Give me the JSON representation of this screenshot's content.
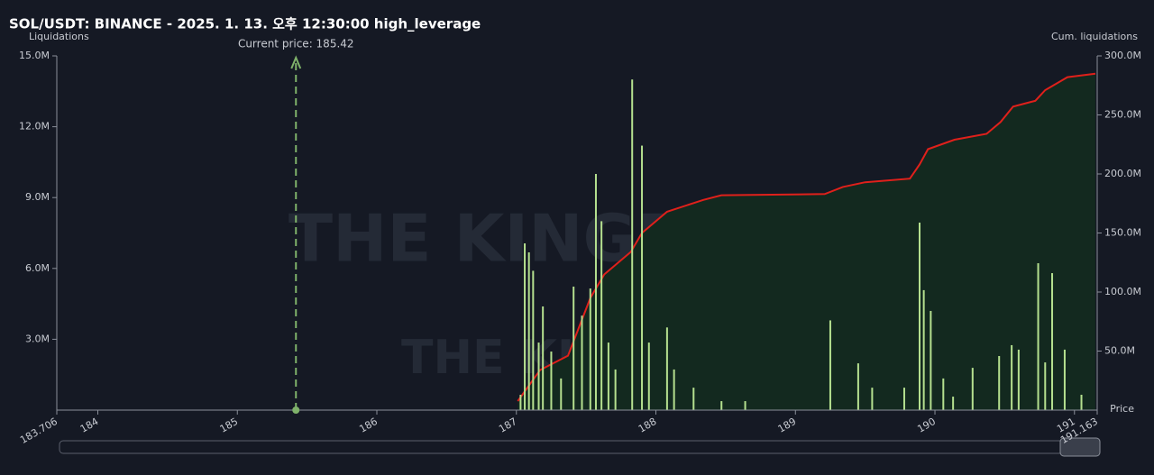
{
  "chart_data": {
    "type": "bar",
    "title": "SOL/USDT: BINANCE - 2025. 1. 13. 오후 12:30:00 high_leverage",
    "y_label": "Liquidations",
    "y2_label": "Cum. liquidations",
    "x_label": "Price",
    "watermark": "THE KINGFISHER.io",
    "current_price": 185.42,
    "current_price_label": "Current price: 185.42",
    "current_price_color": "#7fb26a",
    "xlim": [
      183.706,
      191.163
    ],
    "xticks": [
      183.706,
      184,
      185,
      186,
      187,
      188,
      189,
      190,
      191,
      191.163
    ],
    "ylim": [
      0,
      15000000
    ],
    "yticks": [
      {
        "value": 3000000,
        "label": "3.0M"
      },
      {
        "value": 6000000,
        "label": "6.0M"
      },
      {
        "value": 9000000,
        "label": "9.0M"
      },
      {
        "value": 12000000,
        "label": "12.0M"
      },
      {
        "value": 15000000,
        "label": "15.0M"
      }
    ],
    "y2lim": [
      0,
      300000000
    ],
    "y2ticks": [
      {
        "value": 50000000,
        "label": "50.0M"
      },
      {
        "value": 100000000,
        "label": "100.0M"
      },
      {
        "value": 150000000,
        "label": "150.0M"
      },
      {
        "value": 200000000,
        "label": "200.0M"
      },
      {
        "value": 250000000,
        "label": "250.0M"
      },
      {
        "value": 300000000,
        "label": "300.0M"
      }
    ],
    "series": [
      {
        "color": "#b5e08f",
        "x": [
          187.03,
          187.06,
          187.09,
          187.12,
          187.16,
          187.19,
          187.25,
          187.32,
          187.41,
          187.47,
          187.53,
          187.57,
          187.61,
          187.66,
          187.71,
          187.83,
          187.9,
          187.95,
          188.08,
          188.13,
          188.27,
          188.47,
          188.64,
          189.25,
          189.45,
          189.55,
          189.78,
          189.89,
          189.92,
          189.97,
          190.06,
          190.13,
          190.27,
          190.46,
          190.55,
          190.6,
          190.74,
          190.79,
          190.84,
          190.93,
          191.05
        ],
        "values": [
          650000,
          7060000,
          6680000,
          5900000,
          2860000,
          4390000,
          2480000,
          1340000,
          5230000,
          4000000,
          5150000,
          10000000,
          8000000,
          2860000,
          1720000,
          14000000,
          11200000,
          2860000,
          3500000,
          1720000,
          950000,
          380000,
          380000,
          3800000,
          1980000,
          950000,
          950000,
          7940000,
          5080000,
          4200000,
          1340000,
          570000,
          1790000,
          2290000,
          2750000,
          2560000,
          6220000,
          2020000,
          5800000,
          2560000,
          650000
        ]
      },
      {
        "color": "#e0201b",
        "axis": "y2",
        "fill": "#13291f",
        "x": [
          187.01,
          187.17,
          187.37,
          187.53,
          187.63,
          187.82,
          187.9,
          188.08,
          188.34,
          188.47,
          189.21,
          189.34,
          189.5,
          189.82,
          189.89,
          189.95,
          190.14,
          190.37,
          190.47,
          190.56,
          190.72,
          190.79,
          190.95,
          191.15
        ],
        "values": [
          7600000,
          34000000,
          46000000,
          95000000,
          115000000,
          134000000,
          150000000,
          168000000,
          178000000,
          182000000,
          183000000,
          189000000,
          193000000,
          196000000,
          208000000,
          221000000,
          229000000,
          234000000,
          244000000,
          257000000,
          262000000,
          271000000,
          282000000,
          285000000
        ]
      }
    ]
  }
}
